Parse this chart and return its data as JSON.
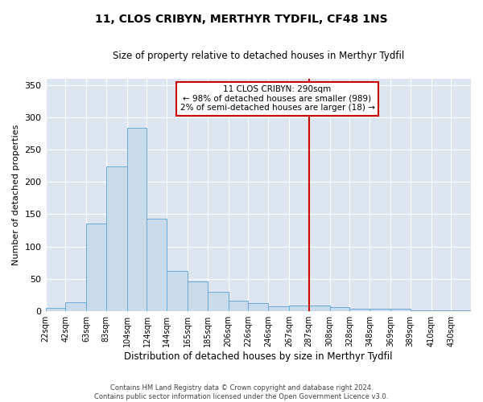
{
  "title": "11, CLOS CRIBYN, MERTHYR TYDFIL, CF48 1NS",
  "subtitle": "Size of property relative to detached houses in Merthyr Tydfil",
  "xlabel": "Distribution of detached houses by size in Merthyr Tydfil",
  "ylabel": "Number of detached properties",
  "footer_line1": "Contains HM Land Registry data © Crown copyright and database right 2024.",
  "footer_line2": "Contains public sector information licensed under the Open Government Licence v3.0.",
  "annotation_title": "11 CLOS CRIBYN: 290sqm",
  "annotation_line2": "← 98% of detached houses are smaller (989)",
  "annotation_line3": "2% of semi-detached houses are larger (18) →",
  "property_line_x": 287,
  "bar_color": "#c9daea",
  "bar_edge_color": "#6aaad4",
  "line_color": "#cc0000",
  "bg_color": "#dde6f0",
  "categories": [
    "22sqm",
    "42sqm",
    "63sqm",
    "83sqm",
    "104sqm",
    "124sqm",
    "144sqm",
    "165sqm",
    "185sqm",
    "206sqm",
    "226sqm",
    "246sqm",
    "267sqm",
    "287sqm",
    "308sqm",
    "328sqm",
    "348sqm",
    "369sqm",
    "389sqm",
    "410sqm",
    "430sqm"
  ],
  "bin_edges": [
    22,
    42,
    63,
    83,
    104,
    124,
    144,
    165,
    185,
    206,
    226,
    246,
    267,
    287,
    308,
    328,
    348,
    369,
    389,
    410,
    430,
    450
  ],
  "bar_heights": [
    5,
    14,
    136,
    224,
    284,
    143,
    63,
    46,
    30,
    16,
    13,
    8,
    9,
    9,
    6,
    4,
    4,
    4,
    2,
    1,
    2
  ],
  "ylim": [
    0,
    360
  ],
  "yticks": [
    0,
    50,
    100,
    150,
    200,
    250,
    300,
    350
  ]
}
